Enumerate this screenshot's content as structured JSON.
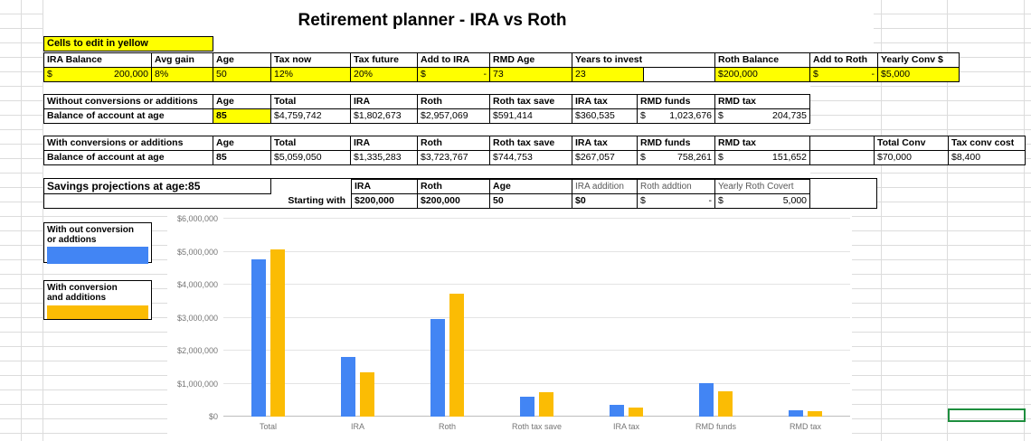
{
  "title": "Retirement planner  - IRA vs Roth",
  "edit_note": "Cells to edit in yellow",
  "colors": {
    "highlight": "#ffff00",
    "series_blue": "#4285f4",
    "series_orange": "#fbbc04",
    "active_cell_border": "#1e8e3e"
  },
  "tables": {
    "inputs": {
      "rows": [
        [
          {
            "t": "IRA Balance",
            "b": 1
          },
          {
            "t": "Avg gain",
            "b": 1
          },
          {
            "t": "Age",
            "b": 1
          },
          {
            "t": "Tax now",
            "b": 1
          },
          {
            "t": "Tax future",
            "b": 1
          },
          {
            "t": "Add to IRA",
            "b": 1
          },
          {
            "t": "RMD Age",
            "b": 1
          },
          {
            "t": "Years to invest",
            "b": 1,
            "span": 2
          },
          {
            "t": "Roth Balance",
            "b": 1
          },
          {
            "t": "Add to Roth",
            "b": 1
          },
          {
            "t": "Yearly Conv $",
            "b": 1
          }
        ],
        [
          {
            "l": "$",
            "r": "200,000",
            "hl": 1
          },
          {
            "t": "8%",
            "hl": 1
          },
          {
            "t": "50",
            "hl": 1
          },
          {
            "t": "12%",
            "hl": 1
          },
          {
            "t": "20%",
            "hl": 1
          },
          {
            "l": "$",
            "r": "-",
            "hl": 1
          },
          {
            "t": "73",
            "hl": 1
          },
          {
            "t": "23",
            "hl": 1
          },
          {
            "t": ""
          },
          {
            "t": "$200,000",
            "hl": 1
          },
          {
            "l": "$",
            "r": "-",
            "hl": 1
          },
          {
            "t": "$5,000",
            "hl": 1
          }
        ]
      ]
    },
    "no_conversion": {
      "rows": [
        [
          {
            "t": "Without conversions or additions",
            "b": 1
          },
          {
            "t": "Age",
            "b": 1
          },
          {
            "t": "Total",
            "b": 1
          },
          {
            "t": "IRA",
            "b": 1
          },
          {
            "t": "Roth",
            "b": 1
          },
          {
            "t": "Roth tax save",
            "b": 1
          },
          {
            "t": "IRA tax",
            "b": 1
          },
          {
            "t": "RMD funds",
            "b": 1
          },
          {
            "t": "RMD tax",
            "b": 1
          }
        ],
        [
          {
            "t": "Balance of account  at age",
            "b": 1
          },
          {
            "t": "85",
            "b": 1,
            "hl": 1
          },
          {
            "t": "$4,759,742"
          },
          {
            "t": "$1,802,673"
          },
          {
            "t": "$2,957,069"
          },
          {
            "t": "$591,414"
          },
          {
            "t": "$360,535"
          },
          {
            "l": "$",
            "r": "1,023,676"
          },
          {
            "l": "$",
            "r": "204,735"
          }
        ]
      ]
    },
    "with_conversion": {
      "rows": [
        [
          {
            "t": "With conversions or additions",
            "b": 1
          },
          {
            "t": "Age",
            "b": 1
          },
          {
            "t": "Total",
            "b": 1
          },
          {
            "t": "IRA",
            "b": 1
          },
          {
            "t": "Roth",
            "b": 1
          },
          {
            "t": "Roth tax save",
            "b": 1
          },
          {
            "t": "IRA tax",
            "b": 1
          },
          {
            "t": "RMD funds",
            "b": 1
          },
          {
            "t": "RMD tax",
            "b": 1
          },
          {
            "t": ""
          },
          {
            "t": "Total Conv",
            "b": 1
          },
          {
            "t": "Tax conv cost",
            "b": 1
          }
        ],
        [
          {
            "t": "Balance of account  at age",
            "b": 1
          },
          {
            "t": "85",
            "b": 1
          },
          {
            "t": "$5,059,050"
          },
          {
            "t": "$1,335,283"
          },
          {
            "t": "$3,723,767"
          },
          {
            "t": "$744,753"
          },
          {
            "t": "$267,057"
          },
          {
            "l": "$",
            "r": "758,261"
          },
          {
            "l": "$",
            "r": "151,652"
          },
          {
            "t": ""
          },
          {
            "t": "$70,000"
          },
          {
            "t": "$8,400"
          }
        ]
      ]
    }
  },
  "savings": {
    "title": "Savings projections at age:85",
    "starting_with": "Starting with",
    "headers": [
      "IRA",
      "Roth",
      "Age",
      "IRA addition",
      "Roth addtion",
      "Yearly Roth Covert"
    ],
    "values": [
      {
        "t": "$200,000"
      },
      {
        "t": "$200,000"
      },
      {
        "t": "50"
      },
      {
        "t": "$0"
      },
      {
        "l": "$",
        "r": "-"
      },
      {
        "l": "$",
        "r": "5,000"
      }
    ]
  },
  "legend": {
    "items": [
      {
        "line1": "With out conversion",
        "line2": "or addtions",
        "color_key": "series_blue"
      },
      {
        "line1": "With conversion",
        "line2": "and additions",
        "color_key": "series_orange"
      }
    ]
  },
  "chart_data": {
    "type": "bar",
    "title": "",
    "categories": [
      "Total",
      "IRA",
      "Roth",
      "Roth tax save",
      "IRA tax",
      "RMD funds",
      "RMD tax"
    ],
    "series": [
      {
        "name": "With out conversion or addtions",
        "color": "#4285f4",
        "values": [
          4759742,
          1802673,
          2957069,
          591414,
          360535,
          1023676,
          204735
        ]
      },
      {
        "name": "With conversion and additions",
        "color": "#fbbc04",
        "values": [
          5059050,
          1335283,
          3723767,
          744753,
          267057,
          758261,
          151652
        ]
      }
    ],
    "ylim": [
      0,
      6000000
    ],
    "yticks": [
      "$0",
      "$1,000,000",
      "$2,000,000",
      "$3,000,000",
      "$4,000,000",
      "$5,000,000",
      "$6,000,000"
    ],
    "grid": true,
    "legend_position": "external-left"
  }
}
